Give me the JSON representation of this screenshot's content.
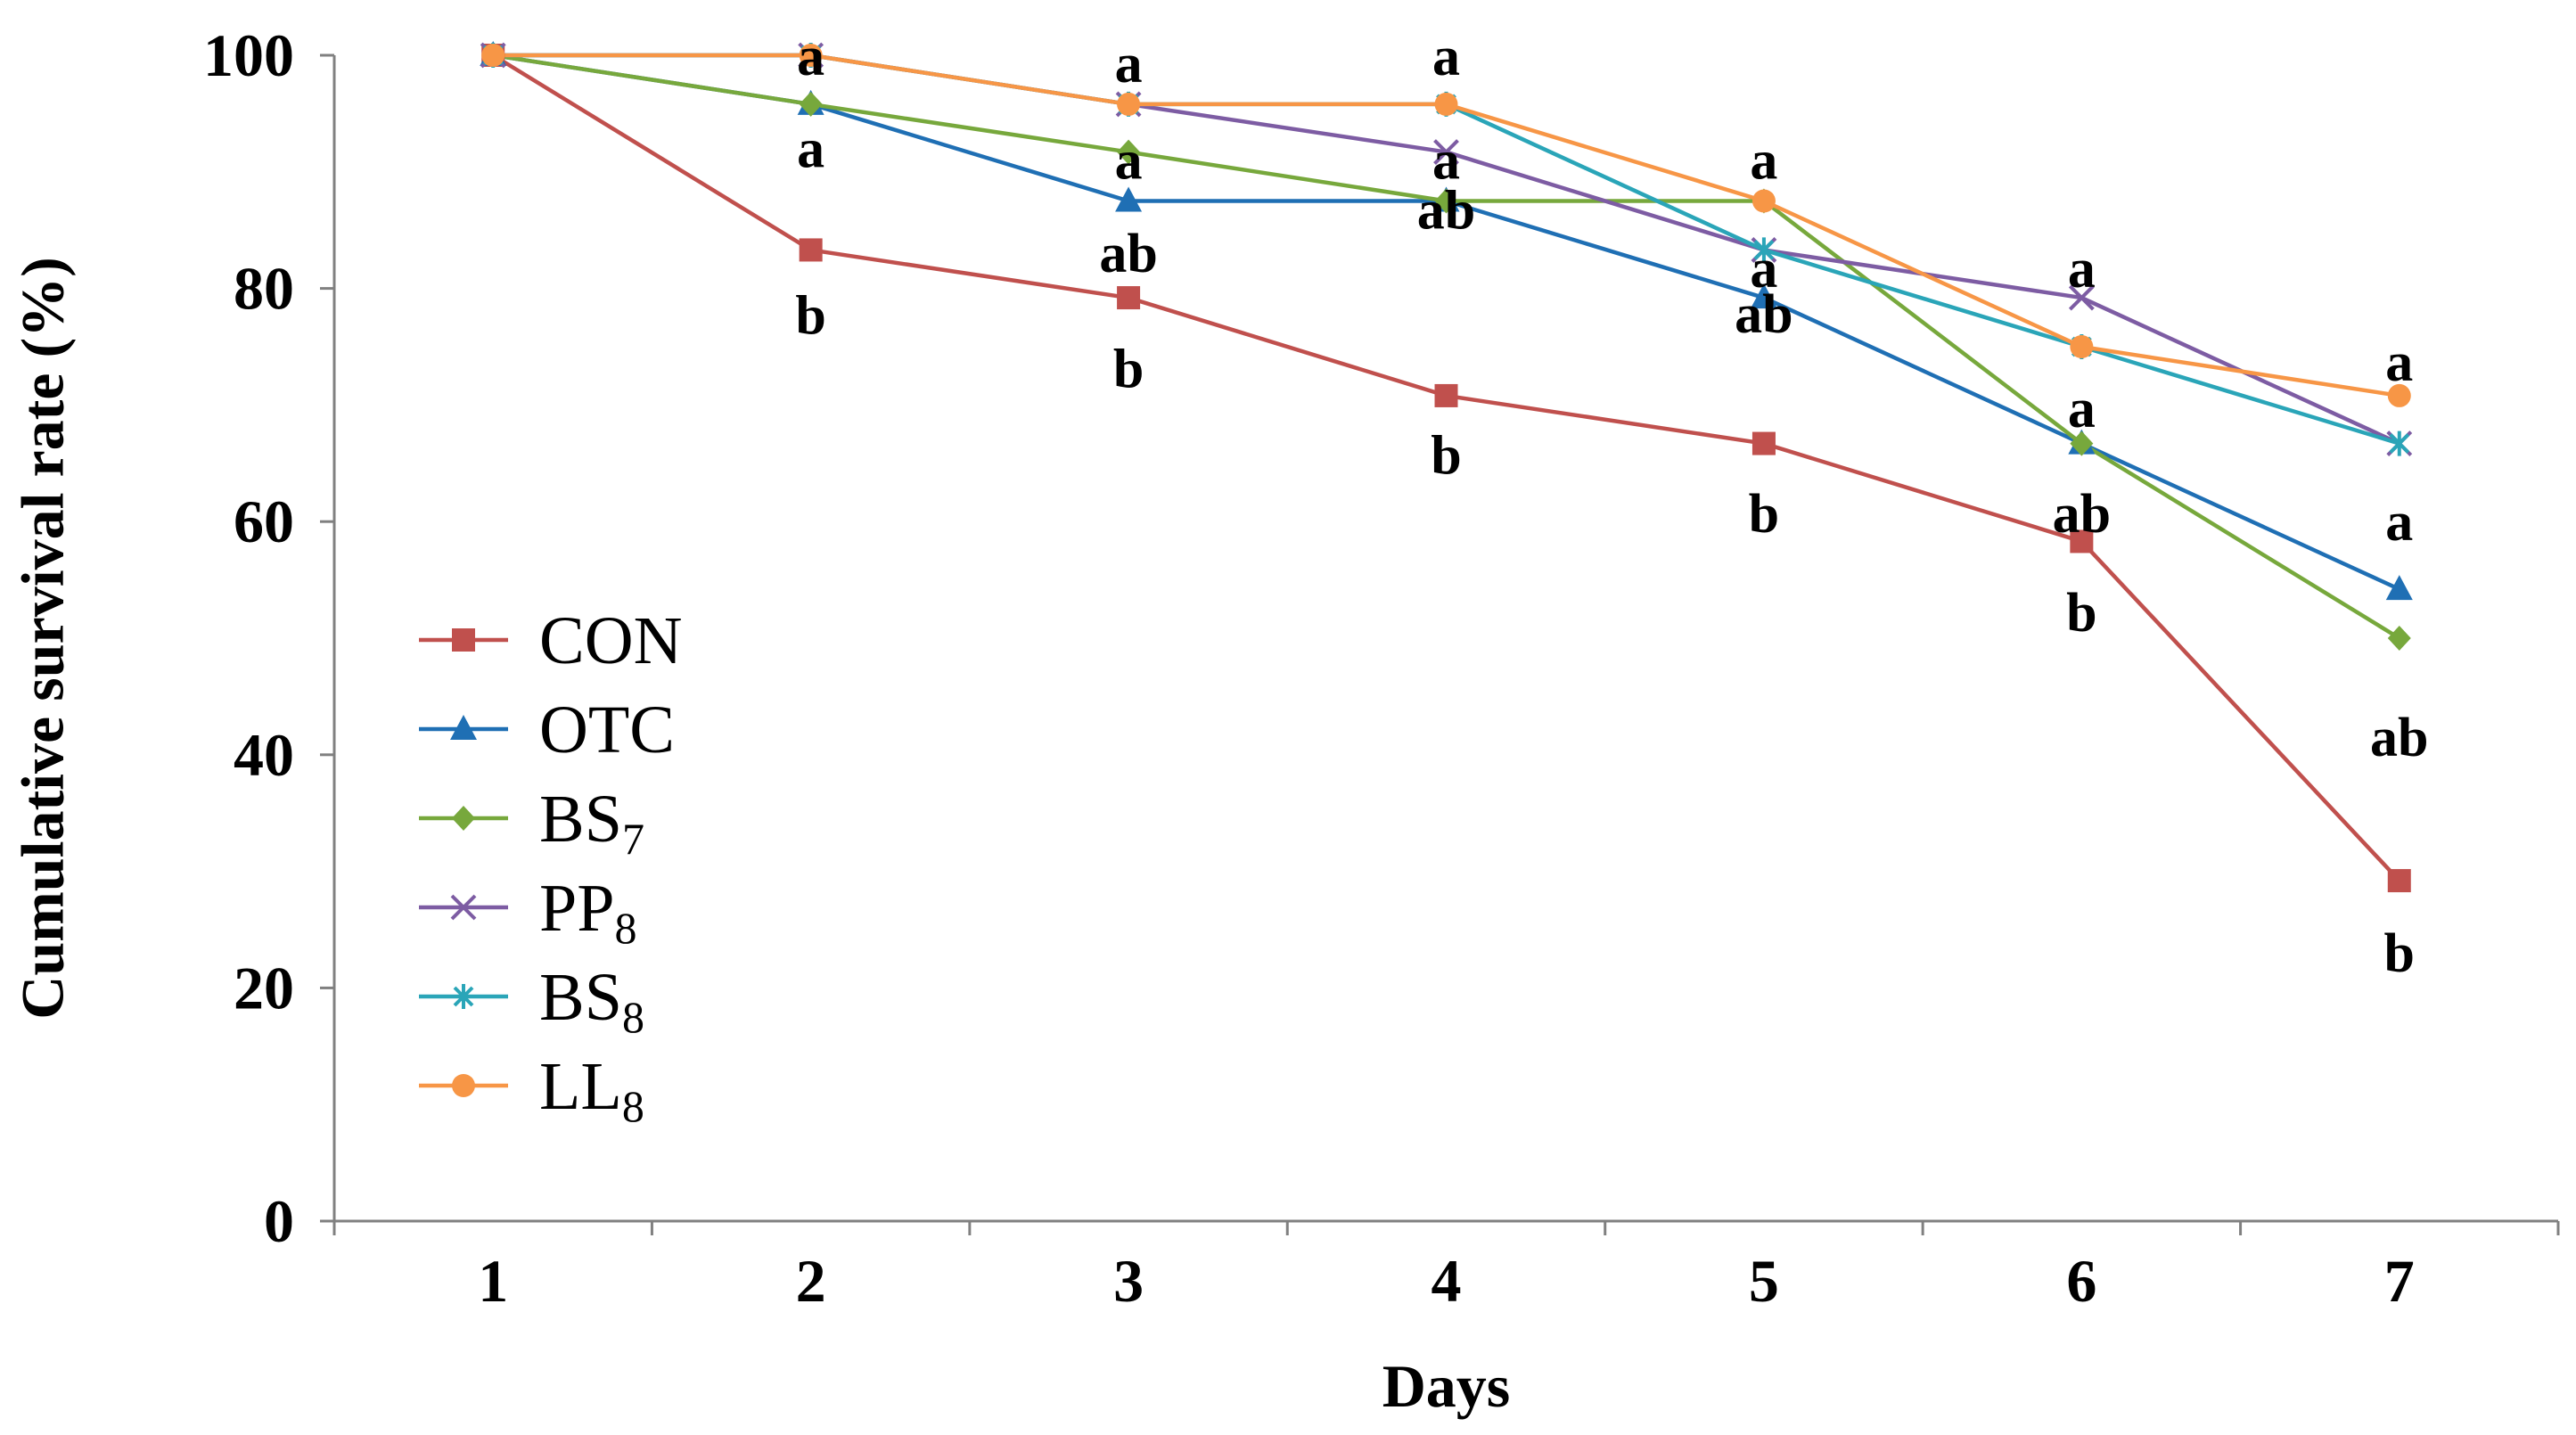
{
  "chart_data": {
    "type": "line",
    "title": "",
    "xlabel": "Days",
    "ylabel": "Cumulative survival rate (%)",
    "x": [
      1,
      2,
      3,
      4,
      5,
      6,
      7
    ],
    "x_tick_labels": [
      "1",
      "2",
      "3",
      "4",
      "5",
      "6",
      "7"
    ],
    "ylim": [
      0,
      100
    ],
    "y_ticks": [
      0,
      20,
      40,
      60,
      80,
      100
    ],
    "y_tick_labels": [
      "0",
      "20",
      "40",
      "60",
      "80",
      "100"
    ],
    "grid": false,
    "legend_position": "left-middle",
    "series": [
      {
        "name": "CON",
        "base": "CON",
        "sub": "",
        "color": "#c0504d",
        "marker": "square",
        "values": [
          100,
          83.3,
          79.2,
          70.8,
          66.7,
          58.3,
          29.2
        ]
      },
      {
        "name": "OTC",
        "base": "OTC",
        "sub": "",
        "color": "#1f6fb4",
        "marker": "triangle",
        "values": [
          100,
          95.8,
          87.5,
          87.5,
          79.2,
          66.7,
          54.2
        ]
      },
      {
        "name": "BS7",
        "base": "BS",
        "sub": "7",
        "color": "#77a83c",
        "marker": "diamond",
        "values": [
          100,
          95.8,
          91.7,
          87.5,
          87.5,
          66.7,
          50.0
        ]
      },
      {
        "name": "PP8",
        "base": "PP",
        "sub": "8",
        "color": "#7d5ca3",
        "marker": "x",
        "values": [
          100,
          100,
          95.8,
          91.7,
          83.3,
          79.2,
          66.7
        ]
      },
      {
        "name": "BS8",
        "base": "BS",
        "sub": "8",
        "color": "#2aa5b8",
        "marker": "star",
        "values": [
          100,
          100,
          95.8,
          95.8,
          83.3,
          75.0,
          66.7
        ]
      },
      {
        "name": "LL8",
        "base": "LL",
        "sub": "8",
        "color": "#f79646",
        "marker": "circle",
        "values": [
          100,
          100,
          95.8,
          95.8,
          87.5,
          75.0,
          70.8
        ]
      }
    ],
    "annotations": [
      {
        "text": "a",
        "x": 2,
        "y": 99.4
      },
      {
        "text": "a",
        "x": 2,
        "y": 91.5
      },
      {
        "text": "b",
        "x": 2,
        "y": 77.2
      },
      {
        "text": "a",
        "x": 3,
        "y": 98.8
      },
      {
        "text": "a",
        "x": 3,
        "y": 90.5
      },
      {
        "text": "ab",
        "x": 3,
        "y": 82.5
      },
      {
        "text": "b",
        "x": 3,
        "y": 72.6
      },
      {
        "text": "a",
        "x": 4,
        "y": 99.4
      },
      {
        "text": "a",
        "x": 4,
        "y": 90.5
      },
      {
        "text": "ab",
        "x": 4,
        "y": 86.2
      },
      {
        "text": "b",
        "x": 4,
        "y": 65.2
      },
      {
        "text": "a",
        "x": 5,
        "y": 90.5
      },
      {
        "text": "a",
        "x": 5,
        "y": 81.2
      },
      {
        "text": "ab",
        "x": 5,
        "y": 77.3
      },
      {
        "text": "b",
        "x": 5,
        "y": 60.2
      },
      {
        "text": "a",
        "x": 6,
        "y": 81.2
      },
      {
        "text": "a",
        "x": 6,
        "y": 69.2
      },
      {
        "text": "ab",
        "x": 6,
        "y": 60.2
      },
      {
        "text": "b",
        "x": 6,
        "y": 51.7
      },
      {
        "text": "a",
        "x": 7,
        "y": 73.2
      },
      {
        "text": "a",
        "x": 7,
        "y": 59.5
      },
      {
        "text": "ab",
        "x": 7,
        "y": 41.0
      },
      {
        "text": "b",
        "x": 7,
        "y": 22.5
      }
    ]
  }
}
